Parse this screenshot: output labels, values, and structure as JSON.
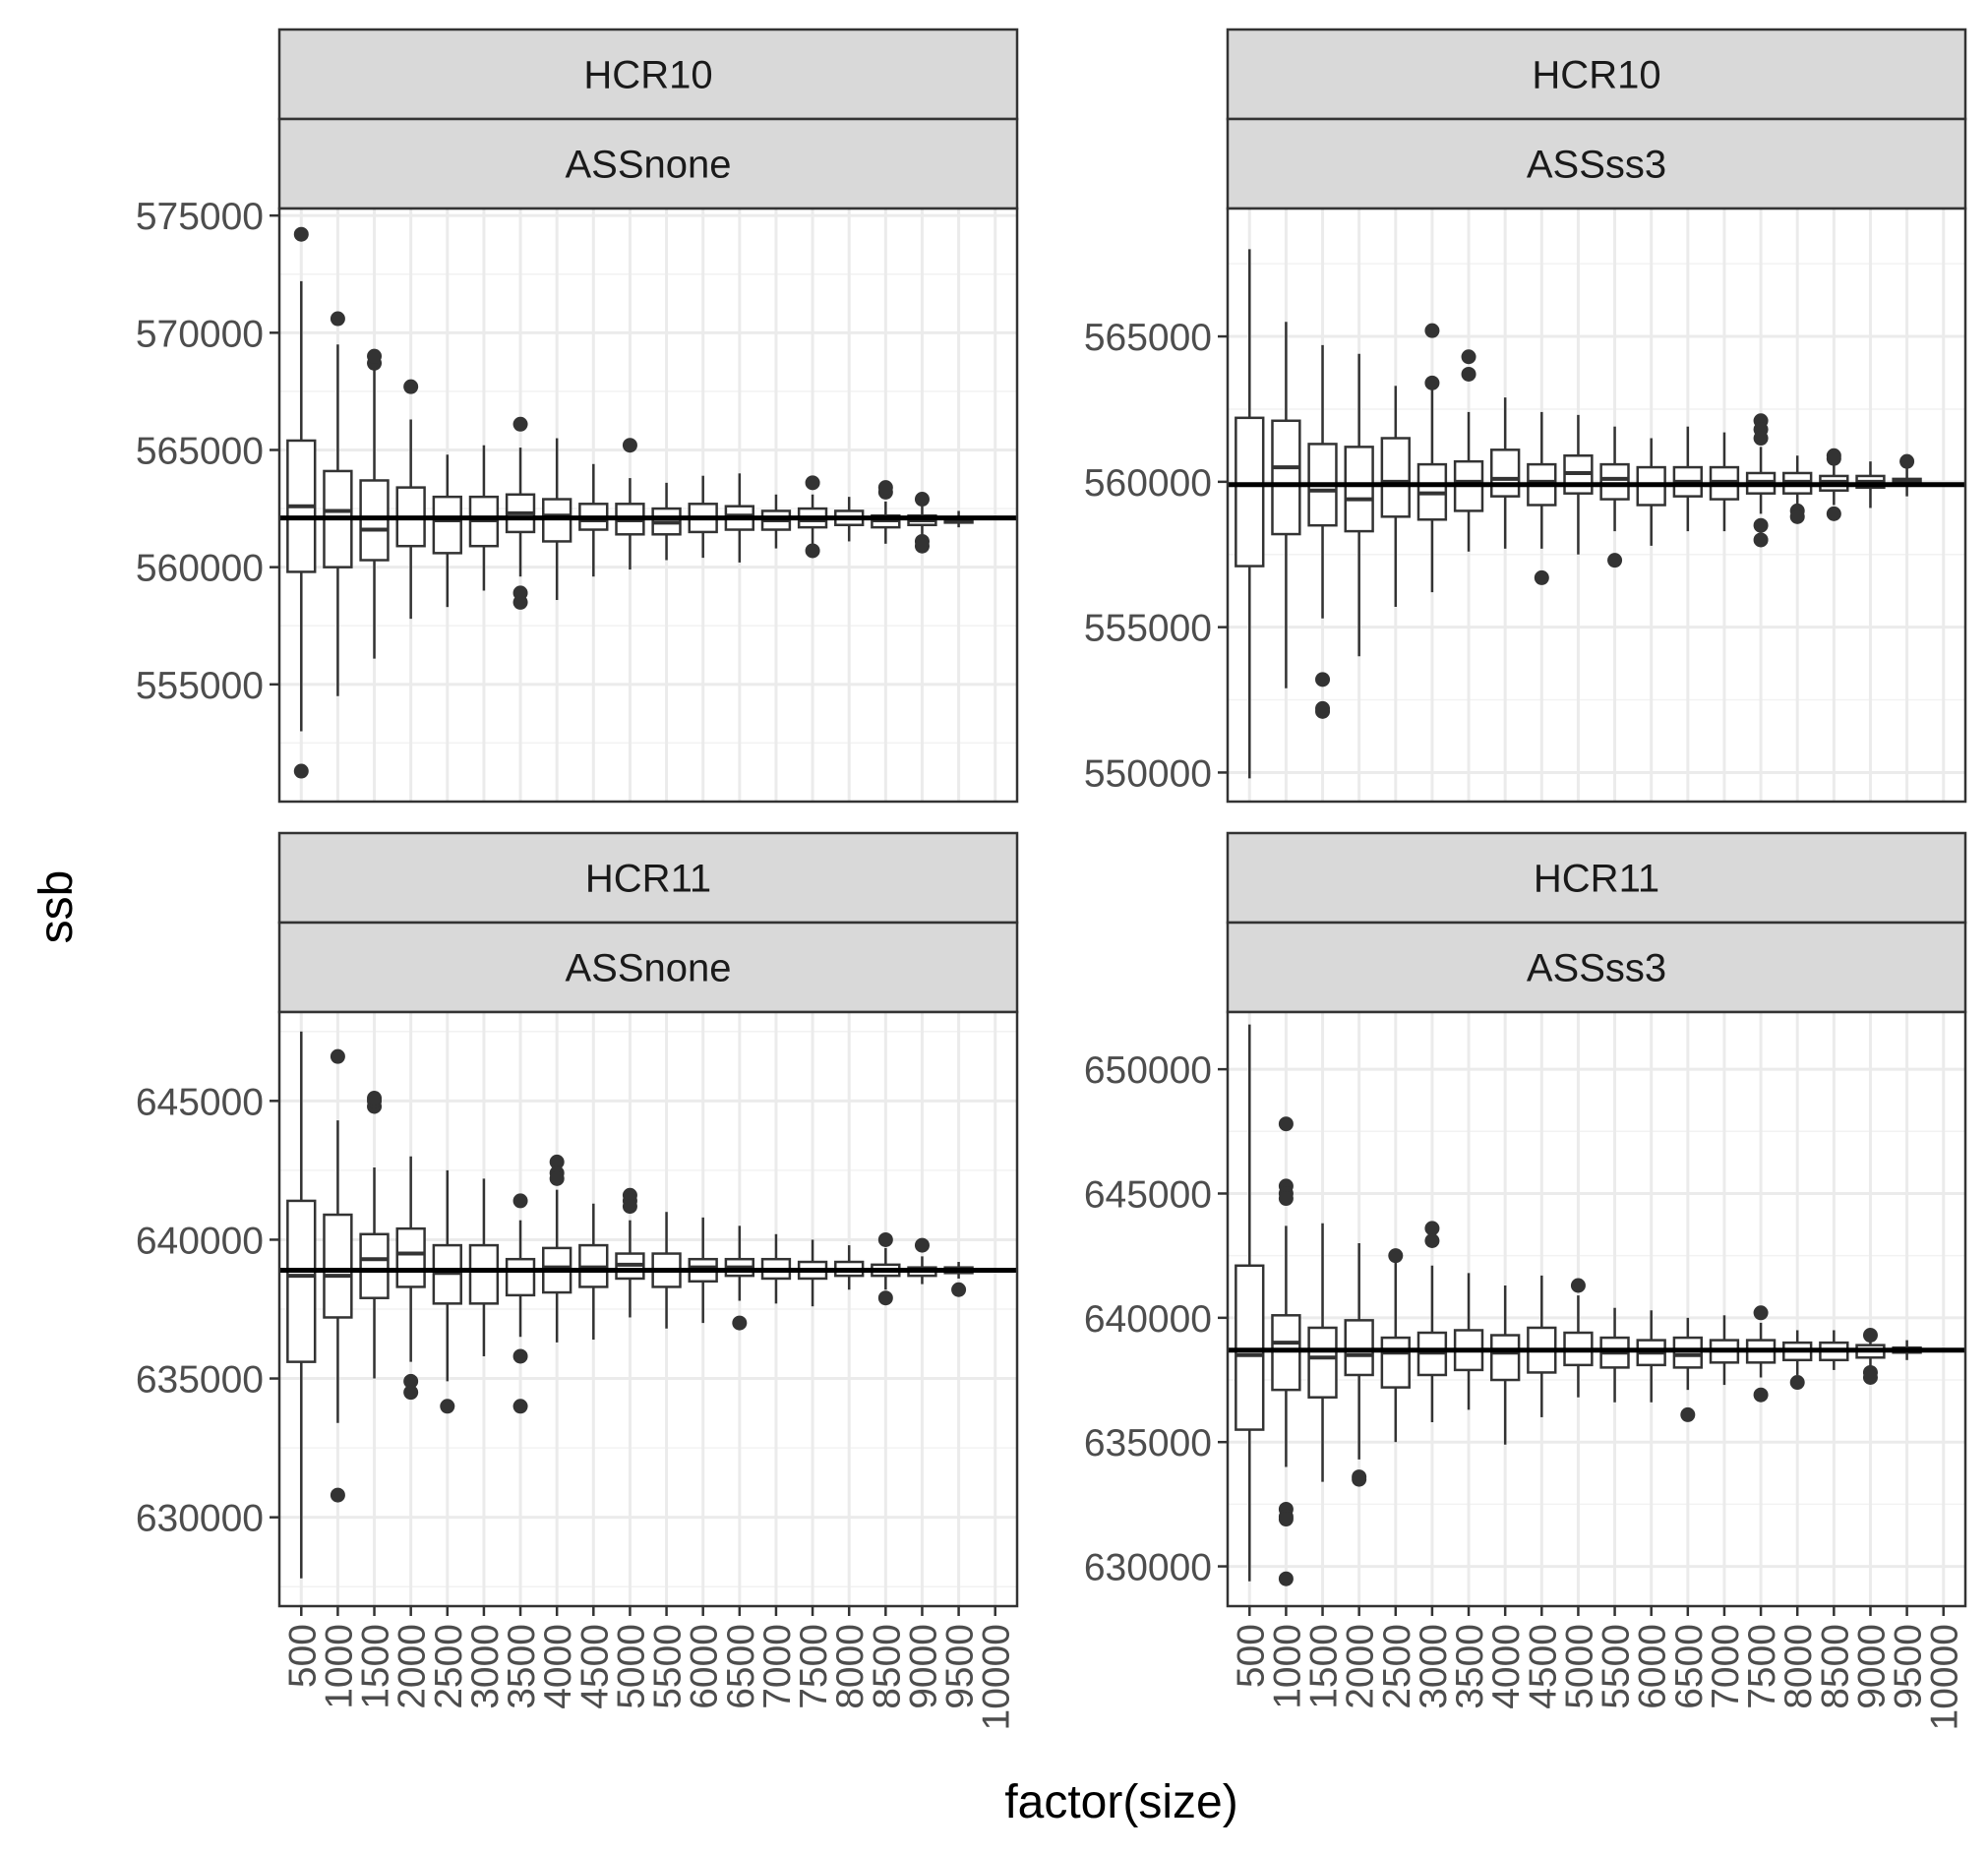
{
  "chart_data": {
    "type": "boxplot",
    "xlabel": "factor(size)",
    "ylabel": "ssb",
    "categories": [
      "500",
      "1000",
      "1500",
      "2000",
      "2500",
      "3000",
      "3500",
      "4000",
      "4500",
      "5000",
      "5500",
      "6000",
      "6500",
      "7000",
      "7500",
      "8000",
      "8500",
      "9000",
      "9500",
      "10000"
    ],
    "grid": true,
    "facets": [
      {
        "strip_top": "HCR10",
        "strip_bottom": "ASSnone",
        "yticks": [
          555000,
          560000,
          565000,
          570000,
          575000
        ],
        "ylim": [
          550000,
          575300
        ],
        "hline": 562100,
        "boxes": [
          {
            "q1": 559800,
            "med": 562600,
            "q3": 565400,
            "lo": 553000,
            "hi": 572200,
            "out": [
              574200,
              551300
            ]
          },
          {
            "q1": 560000,
            "med": 562400,
            "q3": 564100,
            "lo": 554500,
            "hi": 569500,
            "out": [
              570600
            ]
          },
          {
            "q1": 560300,
            "med": 561600,
            "q3": 563700,
            "lo": 556100,
            "hi": 568500,
            "out": [
              568700,
              569000
            ]
          },
          {
            "q1": 560900,
            "med": 562100,
            "q3": 563400,
            "lo": 557800,
            "hi": 566300,
            "out": [
              567700
            ]
          },
          {
            "q1": 560600,
            "med": 562000,
            "q3": 563000,
            "lo": 558300,
            "hi": 564800,
            "out": []
          },
          {
            "q1": 560900,
            "med": 562000,
            "q3": 563000,
            "lo": 559000,
            "hi": 565200,
            "out": []
          },
          {
            "q1": 561500,
            "med": 562300,
            "q3": 563100,
            "lo": 559600,
            "hi": 565100,
            "out": [
              566100,
              558900,
              558500
            ]
          },
          {
            "q1": 561100,
            "med": 562200,
            "q3": 562900,
            "lo": 558600,
            "hi": 565500,
            "out": []
          },
          {
            "q1": 561600,
            "med": 562000,
            "q3": 562700,
            "lo": 559600,
            "hi": 564400,
            "out": []
          },
          {
            "q1": 561400,
            "med": 562000,
            "q3": 562700,
            "lo": 559900,
            "hi": 563800,
            "out": [
              565200
            ]
          },
          {
            "q1": 561400,
            "med": 561900,
            "q3": 562500,
            "lo": 560300,
            "hi": 563600,
            "out": []
          },
          {
            "q1": 561500,
            "med": 562100,
            "q3": 562700,
            "lo": 560400,
            "hi": 563900,
            "out": []
          },
          {
            "q1": 561600,
            "med": 562200,
            "q3": 562600,
            "lo": 560200,
            "hi": 564000,
            "out": []
          },
          {
            "q1": 561600,
            "med": 562000,
            "q3": 562400,
            "lo": 560800,
            "hi": 563100,
            "out": []
          },
          {
            "q1": 561700,
            "med": 562000,
            "q3": 562500,
            "lo": 561000,
            "hi": 563100,
            "out": [
              563600,
              560700
            ]
          },
          {
            "q1": 561800,
            "med": 562100,
            "q3": 562400,
            "lo": 561100,
            "hi": 563000,
            "out": []
          },
          {
            "q1": 561700,
            "med": 562000,
            "q3": 562200,
            "lo": 561000,
            "hi": 562800,
            "out": [
              563200,
              563400
            ]
          },
          {
            "q1": 561800,
            "med": 562000,
            "q3": 562200,
            "lo": 561400,
            "hi": 562600,
            "out": [
              562900,
              561100,
              560900
            ]
          },
          {
            "q1": 561900,
            "med": 562000,
            "q3": 562100,
            "lo": 561700,
            "hi": 562400,
            "out": []
          },
          null
        ]
      },
      {
        "strip_top": "HCR10",
        "strip_bottom": "ASSss3",
        "yticks": [
          550000,
          555000,
          560000,
          565000
        ],
        "ylim": [
          549000,
          569400
        ],
        "hline": 559900,
        "boxes": [
          {
            "q1": 557100,
            "med": 559900,
            "q3": 562200,
            "lo": 549800,
            "hi": 568000,
            "out": []
          },
          {
            "q1": 558200,
            "med": 560500,
            "q3": 562100,
            "lo": 552900,
            "hi": 565500,
            "out": []
          },
          {
            "q1": 558500,
            "med": 559700,
            "q3": 561300,
            "lo": 555300,
            "hi": 564700,
            "out": [
              553200,
              552100,
              552200
            ]
          },
          {
            "q1": 558300,
            "med": 559400,
            "q3": 561200,
            "lo": 554000,
            "hi": 564400,
            "out": []
          },
          {
            "q1": 558800,
            "med": 560000,
            "q3": 561500,
            "lo": 555700,
            "hi": 563300,
            "out": []
          },
          {
            "q1": 558700,
            "med": 559600,
            "q3": 560600,
            "lo": 556200,
            "hi": 563200,
            "out": [
              565200,
              563400
            ]
          },
          {
            "q1": 559000,
            "med": 560000,
            "q3": 560700,
            "lo": 557600,
            "hi": 562400,
            "out": [
              564300,
              563700
            ]
          },
          {
            "q1": 559500,
            "med": 560100,
            "q3": 561100,
            "lo": 557700,
            "hi": 562900,
            "out": []
          },
          {
            "q1": 559200,
            "med": 560000,
            "q3": 560600,
            "lo": 557700,
            "hi": 562400,
            "out": [
              556700
            ]
          },
          {
            "q1": 559600,
            "med": 560300,
            "q3": 560900,
            "lo": 557500,
            "hi": 562300,
            "out": []
          },
          {
            "q1": 559400,
            "med": 560100,
            "q3": 560600,
            "lo": 558300,
            "hi": 561900,
            "out": [
              557300
            ]
          },
          {
            "q1": 559200,
            "med": 559900,
            "q3": 560500,
            "lo": 557800,
            "hi": 561500,
            "out": []
          },
          {
            "q1": 559500,
            "med": 560000,
            "q3": 560500,
            "lo": 558300,
            "hi": 561900,
            "out": []
          },
          {
            "q1": 559400,
            "med": 560000,
            "q3": 560500,
            "lo": 558300,
            "hi": 561700,
            "out": []
          },
          {
            "q1": 559600,
            "med": 560000,
            "q3": 560300,
            "lo": 558900,
            "hi": 561200,
            "out": [
              562100,
              561800,
              561500,
              558500,
              558000
            ]
          },
          {
            "q1": 559600,
            "med": 560000,
            "q3": 560300,
            "lo": 559100,
            "hi": 560900,
            "out": [
              559000,
              558800
            ]
          },
          {
            "q1": 559700,
            "med": 560000,
            "q3": 560200,
            "lo": 559200,
            "hi": 560700,
            "out": [
              560900,
              560800,
              558900
            ]
          },
          {
            "q1": 559800,
            "med": 560000,
            "q3": 560200,
            "lo": 559100,
            "hi": 560700,
            "out": []
          },
          {
            "q1": 559900,
            "med": 560000,
            "q3": 560100,
            "lo": 559500,
            "hi": 560500,
            "out": [
              560700
            ]
          },
          null
        ]
      },
      {
        "strip_top": "HCR11",
        "strip_bottom": "ASSnone",
        "yticks": [
          630000,
          635000,
          640000,
          645000
        ],
        "ylim": [
          626800,
          648200
        ],
        "hline": 638900,
        "boxes": [
          {
            "q1": 635600,
            "med": 638700,
            "q3": 641400,
            "lo": 627800,
            "hi": 647500,
            "out": []
          },
          {
            "q1": 637200,
            "med": 638700,
            "q3": 640900,
            "lo": 633400,
            "hi": 644300,
            "out": [
              646600,
              630800
            ]
          },
          {
            "q1": 637900,
            "med": 639300,
            "q3": 640200,
            "lo": 635000,
            "hi": 642600,
            "out": [
              644800,
              645000,
              645100
            ]
          },
          {
            "q1": 638300,
            "med": 639500,
            "q3": 640400,
            "lo": 635600,
            "hi": 643000,
            "out": [
              634900,
              634500
            ]
          },
          {
            "q1": 637700,
            "med": 638800,
            "q3": 639800,
            "lo": 634900,
            "hi": 642500,
            "out": [
              634000
            ]
          },
          {
            "q1": 637700,
            "med": 638900,
            "q3": 639800,
            "lo": 635800,
            "hi": 642200,
            "out": []
          },
          {
            "q1": 638000,
            "med": 638900,
            "q3": 639300,
            "lo": 636500,
            "hi": 640700,
            "out": [
              641400,
              635800,
              634000
            ]
          },
          {
            "q1": 638100,
            "med": 639000,
            "q3": 639700,
            "lo": 636300,
            "hi": 641800,
            "out": [
              642800,
              642400,
              642200
            ]
          },
          {
            "q1": 638300,
            "med": 639000,
            "q3": 639800,
            "lo": 636400,
            "hi": 641300,
            "out": []
          },
          {
            "q1": 638600,
            "med": 639100,
            "q3": 639500,
            "lo": 637200,
            "hi": 640700,
            "out": [
              641600,
              641400,
              641200
            ]
          },
          {
            "q1": 638300,
            "med": 638900,
            "q3": 639500,
            "lo": 636800,
            "hi": 641000,
            "out": []
          },
          {
            "q1": 638500,
            "med": 639000,
            "q3": 639300,
            "lo": 637000,
            "hi": 640800,
            "out": []
          },
          {
            "q1": 638700,
            "med": 639000,
            "q3": 639300,
            "lo": 637800,
            "hi": 640500,
            "out": [
              637000
            ]
          },
          {
            "q1": 638600,
            "med": 638900,
            "q3": 639300,
            "lo": 637700,
            "hi": 640200,
            "out": []
          },
          {
            "q1": 638600,
            "med": 638900,
            "q3": 639200,
            "lo": 637600,
            "hi": 640000,
            "out": []
          },
          {
            "q1": 638700,
            "med": 638900,
            "q3": 639200,
            "lo": 638200,
            "hi": 639800,
            "out": []
          },
          {
            "q1": 638700,
            "med": 638900,
            "q3": 639100,
            "lo": 638200,
            "hi": 639700,
            "out": [
              640000,
              637900
            ]
          },
          {
            "q1": 638700,
            "med": 638900,
            "q3": 639000,
            "lo": 638400,
            "hi": 639400,
            "out": [
              639800
            ]
          },
          {
            "q1": 638800,
            "med": 638900,
            "q3": 639000,
            "lo": 638600,
            "hi": 639200,
            "out": [
              638200
            ]
          },
          null
        ]
      },
      {
        "strip_top": "HCR11",
        "strip_bottom": "ASSss3",
        "yticks": [
          630000,
          635000,
          640000,
          645000,
          650000
        ],
        "ylim": [
          628400,
          652300
        ],
        "hline": 638700,
        "boxes": [
          {
            "q1": 635500,
            "med": 638500,
            "q3": 642100,
            "lo": 629400,
            "hi": 651800,
            "out": []
          },
          {
            "q1": 637100,
            "med": 639000,
            "q3": 640100,
            "lo": 634000,
            "hi": 643700,
            "out": [
              647800,
              645300,
              645000,
              644800,
              632300,
              632000,
              631900,
              629500
            ]
          },
          {
            "q1": 636800,
            "med": 638400,
            "q3": 639600,
            "lo": 633400,
            "hi": 643800,
            "out": []
          },
          {
            "q1": 637700,
            "med": 638500,
            "q3": 639900,
            "lo": 634300,
            "hi": 643000,
            "out": [
              633600,
              633500
            ]
          },
          {
            "q1": 637200,
            "med": 638600,
            "q3": 639200,
            "lo": 635000,
            "hi": 642400,
            "out": [
              642500
            ]
          },
          {
            "q1": 637700,
            "med": 638600,
            "q3": 639400,
            "lo": 635800,
            "hi": 642100,
            "out": [
              643600,
              643100
            ]
          },
          {
            "q1": 637900,
            "med": 638700,
            "q3": 639500,
            "lo": 636300,
            "hi": 641800,
            "out": []
          },
          {
            "q1": 637500,
            "med": 638600,
            "q3": 639300,
            "lo": 634900,
            "hi": 641300,
            "out": []
          },
          {
            "q1": 637800,
            "med": 638700,
            "q3": 639600,
            "lo": 636000,
            "hi": 641700,
            "out": []
          },
          {
            "q1": 638100,
            "med": 638700,
            "q3": 639400,
            "lo": 636800,
            "hi": 640900,
            "out": [
              641300
            ]
          },
          {
            "q1": 638000,
            "med": 638600,
            "q3": 639200,
            "lo": 636600,
            "hi": 640400,
            "out": []
          },
          {
            "q1": 638100,
            "med": 638600,
            "q3": 639100,
            "lo": 636600,
            "hi": 640300,
            "out": []
          },
          {
            "q1": 638000,
            "med": 638500,
            "q3": 639200,
            "lo": 637100,
            "hi": 640000,
            "out": [
              636100
            ]
          },
          {
            "q1": 638200,
            "med": 638700,
            "q3": 639100,
            "lo": 637300,
            "hi": 640100,
            "out": []
          },
          {
            "q1": 638200,
            "med": 638700,
            "q3": 639100,
            "lo": 637600,
            "hi": 639800,
            "out": [
              640200,
              636900
            ]
          },
          {
            "q1": 638300,
            "med": 638700,
            "q3": 639000,
            "lo": 637700,
            "hi": 639500,
            "out": [
              637400
            ]
          },
          {
            "q1": 638300,
            "med": 638700,
            "q3": 639000,
            "lo": 637900,
            "hi": 639500,
            "out": []
          },
          {
            "q1": 638400,
            "med": 638700,
            "q3": 638900,
            "lo": 637900,
            "hi": 639200,
            "out": [
              639300,
              637800,
              637600
            ]
          },
          {
            "q1": 638600,
            "med": 638700,
            "q3": 638800,
            "lo": 638300,
            "hi": 639100,
            "out": []
          },
          null
        ]
      }
    ]
  }
}
